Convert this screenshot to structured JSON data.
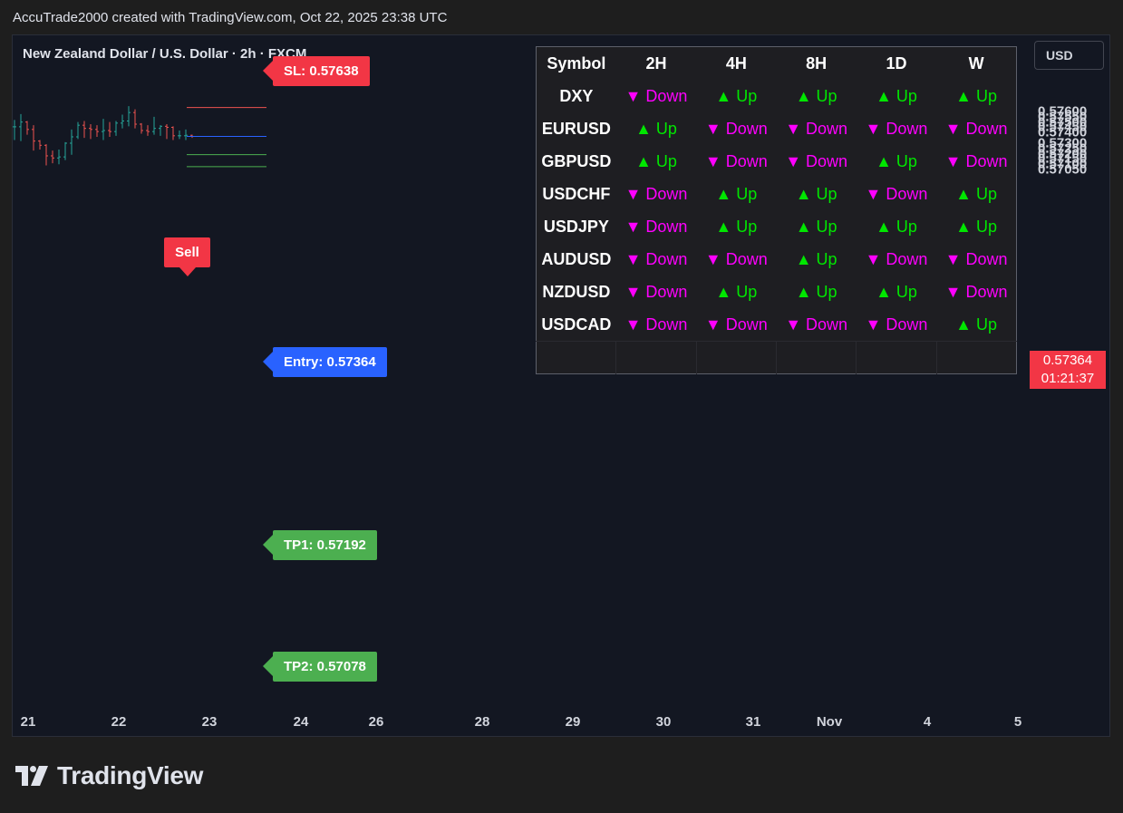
{
  "header": {
    "text": "AccuTrade2000 created with TradingView.com, Oct 22, 2025 23:38 UTC"
  },
  "chart": {
    "symbol_title": "New Zealand Dollar / U.S. Dollar · 2h · FXCM",
    "currency": "USD",
    "last_price": "0.57364",
    "countdown": "01:21:37",
    "sell_label": "Sell",
    "tags": {
      "sl": "SL: 0.57638",
      "entry": "Entry: 0.57364",
      "tp1": "TP1: 0.57192",
      "tp2": "TP2: 0.57078"
    },
    "colors": {
      "up": "#26a69a",
      "down": "#ef5350",
      "sell": "#f23645",
      "entry": "#2962ff",
      "tp": "#4caf50"
    }
  },
  "chart_data": {
    "type": "candlestick",
    "yticks": [
      "0.57600",
      "0.57550",
      "0.57500",
      "0.57450",
      "0.57400",
      "0.57300",
      "0.57250",
      "0.57200",
      "0.57150",
      "0.57100",
      "0.57050"
    ],
    "xticks": [
      "21",
      "22",
      "23",
      "24",
      "26",
      "28",
      "29",
      "30",
      "31",
      "Nov",
      "4",
      "5"
    ],
    "levels": {
      "sl": 0.57638,
      "entry": 0.57364,
      "tp1": 0.57192,
      "tp2": 0.57078
    },
    "candles": [
      [
        0.57455,
        0.5752,
        0.5733,
        0.57455
      ],
      [
        0.57455,
        0.57575,
        0.5732,
        0.575
      ],
      [
        0.575,
        0.5751,
        0.5738,
        0.5743
      ],
      [
        0.5743,
        0.5747,
        0.5723,
        0.5732
      ],
      [
        0.5732,
        0.5733,
        0.5724,
        0.5728
      ],
      [
        0.5728,
        0.5729,
        0.5709,
        0.5718
      ],
      [
        0.5718,
        0.5723,
        0.5711,
        0.5716
      ],
      [
        0.5716,
        0.5724,
        0.571,
        0.5717
      ],
      [
        0.5717,
        0.5731,
        0.5714,
        0.573
      ],
      [
        0.573,
        0.5743,
        0.5719,
        0.5736
      ],
      [
        0.5736,
        0.575,
        0.5734,
        0.5747
      ],
      [
        0.5747,
        0.5751,
        0.5735,
        0.5744
      ],
      [
        0.5744,
        0.5748,
        0.5734,
        0.5743
      ],
      [
        0.5743,
        0.5747,
        0.5736,
        0.5741
      ],
      [
        0.5741,
        0.5753,
        0.5733,
        0.5742
      ],
      [
        0.5742,
        0.575,
        0.5736,
        0.5741
      ],
      [
        0.5741,
        0.5751,
        0.5737,
        0.5749
      ],
      [
        0.5749,
        0.5757,
        0.5744,
        0.5751
      ],
      [
        0.5751,
        0.5765,
        0.5746,
        0.5759
      ],
      [
        0.5759,
        0.5762,
        0.5744,
        0.5748
      ],
      [
        0.5748,
        0.5749,
        0.5739,
        0.5742
      ],
      [
        0.5742,
        0.5747,
        0.5737,
        0.5741
      ],
      [
        0.5741,
        0.5755,
        0.5738,
        0.5744
      ],
      [
        0.5744,
        0.5747,
        0.5737,
        0.5746
      ],
      [
        0.5746,
        0.5748,
        0.5734,
        0.5745
      ],
      [
        0.5745,
        0.5746,
        0.5733,
        0.5737
      ],
      [
        0.5737,
        0.5742,
        0.5734,
        0.5737
      ],
      [
        0.5737,
        0.5743,
        0.5733,
        0.57375
      ],
      [
        0.57375,
        0.5738,
        0.5735,
        0.57364
      ]
    ]
  },
  "mtf_table": {
    "headers": [
      "Symbol",
      "2H",
      "4H",
      "8H",
      "1D",
      "W"
    ],
    "rows": [
      {
        "symbol": "DXY",
        "cells": [
          {
            "label": "▼ Down",
            "dir": "down"
          },
          {
            "label": "▲ Up",
            "dir": "up"
          },
          {
            "label": "▲ Up",
            "dir": "up"
          },
          {
            "label": "▲ Up",
            "dir": "up"
          },
          {
            "label": "▲ Up",
            "dir": "up"
          }
        ]
      },
      {
        "symbol": "EURUSD",
        "cells": [
          {
            "label": "▲ Up",
            "dir": "up"
          },
          {
            "label": "▼ Down",
            "dir": "down"
          },
          {
            "label": "▼ Down",
            "dir": "down"
          },
          {
            "label": "▼ Down",
            "dir": "down"
          },
          {
            "label": "▼ Down",
            "dir": "down"
          }
        ]
      },
      {
        "symbol": "GBPUSD",
        "cells": [
          {
            "label": "▲ Up",
            "dir": "up"
          },
          {
            "label": "▼ Down",
            "dir": "down"
          },
          {
            "label": "▼ Down",
            "dir": "down"
          },
          {
            "label": "▲ Up",
            "dir": "up"
          },
          {
            "label": "▼ Down",
            "dir": "down"
          }
        ]
      },
      {
        "symbol": "USDCHF",
        "cells": [
          {
            "label": "▼ Down",
            "dir": "down"
          },
          {
            "label": "▲ Up",
            "dir": "up"
          },
          {
            "label": "▲ Up",
            "dir": "up"
          },
          {
            "label": "▼ Down",
            "dir": "down"
          },
          {
            "label": "▲ Up",
            "dir": "up"
          }
        ]
      },
      {
        "symbol": "USDJPY",
        "cells": [
          {
            "label": "▼ Down",
            "dir": "down"
          },
          {
            "label": "▲ Up",
            "dir": "up"
          },
          {
            "label": "▲ Up",
            "dir": "up"
          },
          {
            "label": "▲ Up",
            "dir": "up"
          },
          {
            "label": "▲ Up",
            "dir": "up"
          }
        ]
      },
      {
        "symbol": "AUDUSD",
        "cells": [
          {
            "label": "▼ Down",
            "dir": "down"
          },
          {
            "label": "▼ Down",
            "dir": "down"
          },
          {
            "label": "▲ Up",
            "dir": "up"
          },
          {
            "label": "▼ Down",
            "dir": "down"
          },
          {
            "label": "▼ Down",
            "dir": "down"
          }
        ]
      },
      {
        "symbol": "NZDUSD",
        "cells": [
          {
            "label": "▼ Down",
            "dir": "down"
          },
          {
            "label": "▲ Up",
            "dir": "up"
          },
          {
            "label": "▲ Up",
            "dir": "up"
          },
          {
            "label": "▲ Up",
            "dir": "up"
          },
          {
            "label": "▼ Down",
            "dir": "down"
          }
        ]
      },
      {
        "symbol": "USDCAD",
        "cells": [
          {
            "label": "▼ Down",
            "dir": "down"
          },
          {
            "label": "▼ Down",
            "dir": "down"
          },
          {
            "label": "▼ Down",
            "dir": "down"
          },
          {
            "label": "▼ Down",
            "dir": "down"
          },
          {
            "label": "▲ Up",
            "dir": "up"
          }
        ]
      }
    ]
  },
  "footer": {
    "logo_text": "TradingView"
  }
}
